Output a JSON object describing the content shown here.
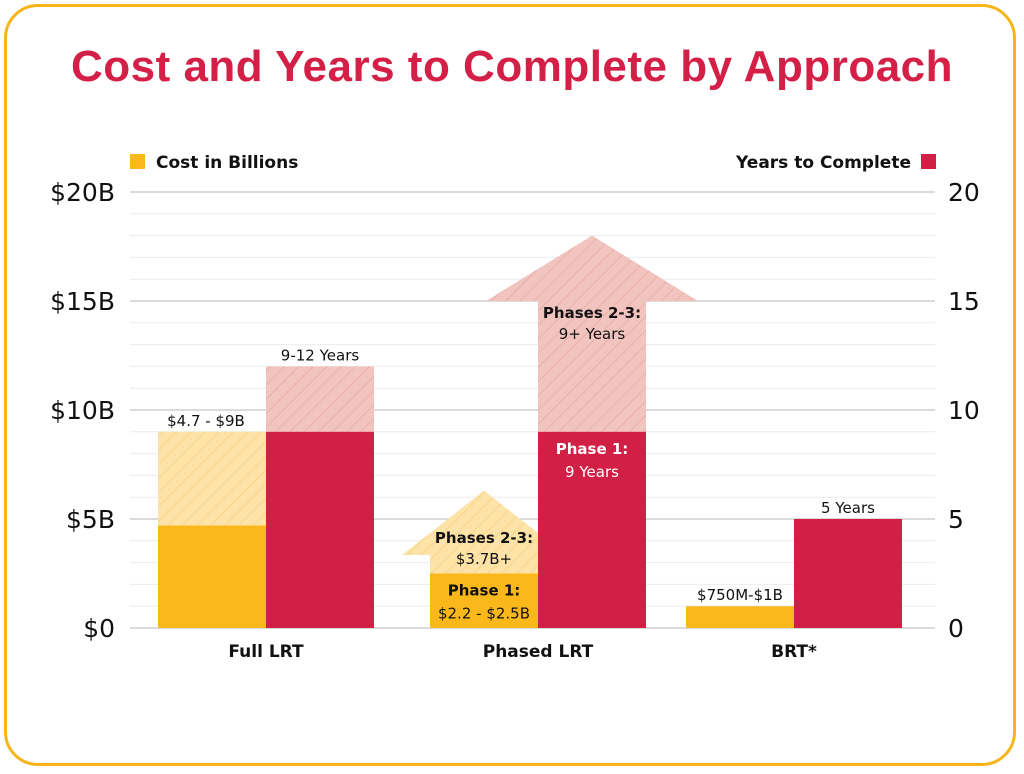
{
  "title": "Cost and Years to Complete by Approach",
  "legend": {
    "cost": {
      "label": "Cost in Billions",
      "color": "#fbb81b"
    },
    "years": {
      "label": "Years to Complete",
      "color": "#d11f46"
    }
  },
  "chart_data": {
    "type": "bar",
    "title": "Cost and Years to Complete by Approach",
    "categories": [
      "Full LRT",
      "Phased LRT",
      "BRT*"
    ],
    "left_axis": {
      "ticks": [
        "$0",
        "$5B",
        "$10B",
        "$15B",
        "$20B"
      ],
      "range": [
        0,
        20
      ],
      "unit": "billions USD"
    },
    "right_axis": {
      "ticks": [
        "0",
        "5",
        "10",
        "15",
        "20"
      ],
      "range": [
        0,
        20
      ],
      "unit": "years"
    },
    "grid": true,
    "series": [
      {
        "name": "Cost in Billions",
        "color": "#fbb81b",
        "hatched_color": "#fde3a7",
        "values": [
          {
            "solid": 4.7,
            "extended": 9,
            "style": "hatched",
            "labels": [
              "$4.7 - $9B"
            ]
          },
          {
            "solid": 2.5,
            "extended": 6.3,
            "style": "arrow",
            "labels": [
              "Phases 2-3:",
              "$3.7B+",
              "Phase 1:",
              "$2.2 - $2.5B"
            ]
          },
          {
            "solid": 1,
            "labels": [
              "$750M-$1B"
            ]
          }
        ]
      },
      {
        "name": "Years to Complete",
        "color": "#d11f46",
        "hatched_color": "#f2c4bf",
        "values": [
          {
            "solid": 9,
            "extended": 12,
            "style": "hatched",
            "labels": [
              "9-12 Years"
            ]
          },
          {
            "solid": 9,
            "extended": 18,
            "style": "arrow",
            "labels": [
              "Phases 2-3:",
              "9+ Years",
              "Phase 1:",
              "9 Years"
            ]
          },
          {
            "solid": 5,
            "labels": [
              "5 Years"
            ]
          }
        ]
      }
    ]
  }
}
